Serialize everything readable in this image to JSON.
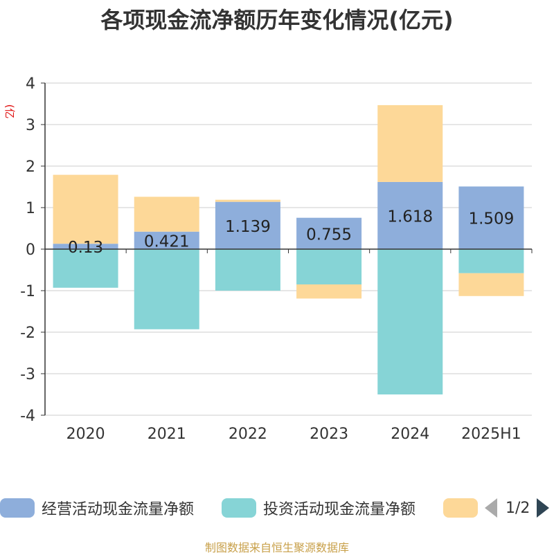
{
  "title": "各项现金流净额历年变化情况(亿元)",
  "chart_data": {
    "type": "bar",
    "stacked": true,
    "title": "各项现金流净额历年变化情况(亿元)",
    "ylabel": "(亿元)",
    "ylim": [
      -4,
      4
    ],
    "yticks": [
      4,
      3,
      2,
      1,
      0,
      -1,
      -2,
      -3,
      -4
    ],
    "categories": [
      "2020",
      "2021",
      "2022",
      "2023",
      "2024",
      "2025H1"
    ],
    "grid": true,
    "legend_position": "bottom",
    "series": [
      {
        "name": "经营活动现金流量净额",
        "color": "#8eaedb",
        "values": [
          0.13,
          0.421,
          1.139,
          0.755,
          1.618,
          1.509
        ],
        "labels": [
          "0.13",
          "0.421",
          "1.139",
          "0.755",
          "1.618",
          "1.509"
        ]
      },
      {
        "name": "投资活动现金流量净额",
        "color": "#86d4d6",
        "values": [
          -0.93,
          -1.93,
          -1.0,
          -0.85,
          -3.5,
          -0.58
        ]
      },
      {
        "name": "",
        "color": "#fdd898",
        "values": [
          1.66,
          0.84,
          0.05,
          -0.34,
          1.85,
          -0.55
        ]
      }
    ]
  },
  "legend": {
    "items": [
      {
        "label": "经营活动现金流量净额",
        "color": "#8eaedb"
      },
      {
        "label": "投资活动现金流量净额",
        "color": "#86d4d6"
      },
      {
        "label": "",
        "color": "#fdd898"
      }
    ],
    "page": "1/2"
  },
  "source": "制图数据来自恒生聚源数据库"
}
